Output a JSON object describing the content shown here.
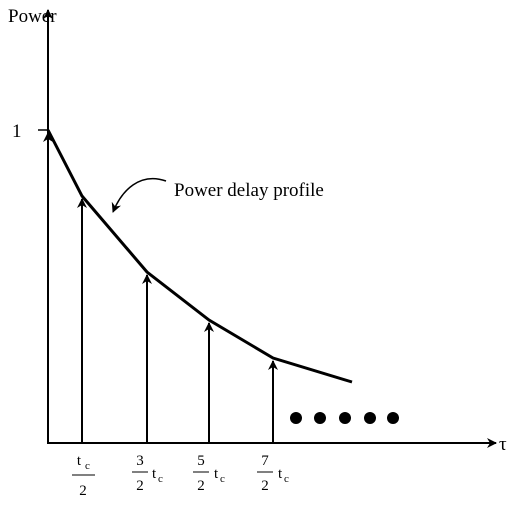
{
  "axes": {
    "y_label": "Power",
    "x_label": "τ",
    "y_tick": "1"
  },
  "annotation": "Power delay profile",
  "x_labels": [
    {
      "numerator": "t",
      "subscript": "c",
      "denominator": "2"
    },
    {
      "numerator": "3",
      "denominator": "2",
      "symbol": "t",
      "subscript": "c"
    },
    {
      "numerator": "5",
      "denominator": "2",
      "symbol": "t",
      "subscript": "c"
    },
    {
      "numerator": "7",
      "denominator": "2",
      "symbol": "t",
      "subscript": "c"
    }
  ]
}
